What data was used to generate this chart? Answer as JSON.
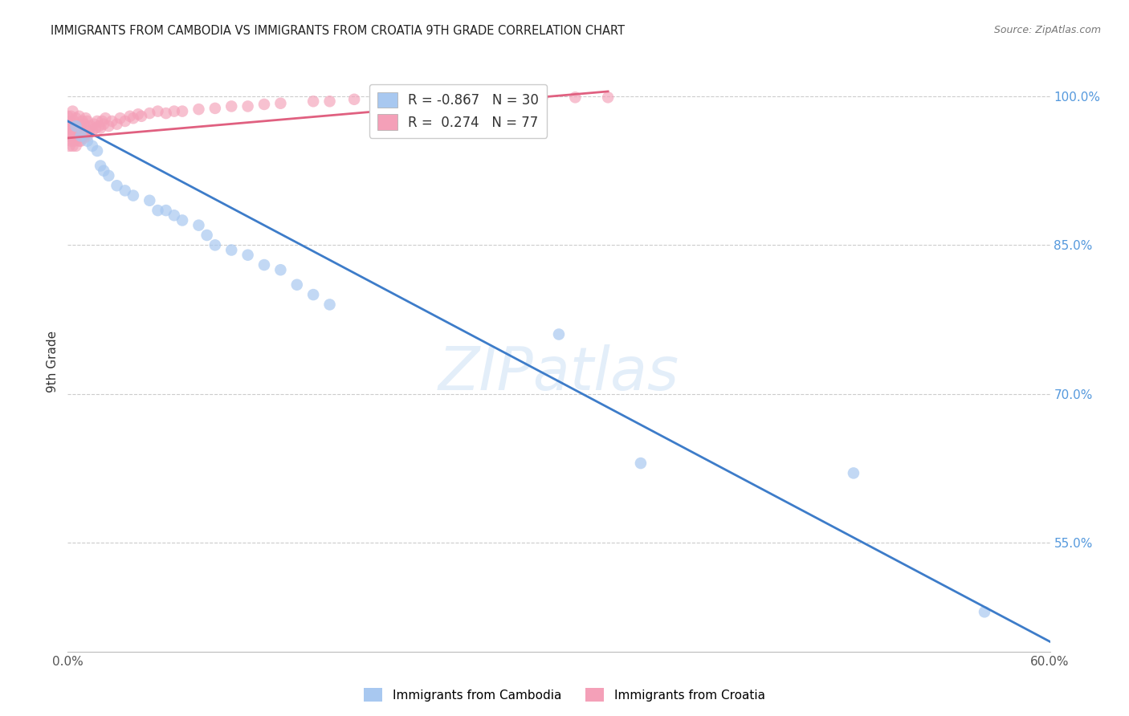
{
  "title": "IMMIGRANTS FROM CAMBODIA VS IMMIGRANTS FROM CROATIA 9TH GRADE CORRELATION CHART",
  "source": "Source: ZipAtlas.com",
  "ylabel": "9th Grade",
  "legend_label1": "Immigrants from Cambodia",
  "legend_label2": "Immigrants from Croatia",
  "R1": -0.867,
  "N1": 30,
  "R2": 0.274,
  "N2": 77,
  "blue_color": "#a8c8f0",
  "pink_color": "#f4a0b8",
  "blue_line_color": "#3d7cc9",
  "pink_line_color": "#e06080",
  "watermark": "ZIPatlas",
  "xlim": [
    0.0,
    0.6
  ],
  "ylim": [
    0.44,
    1.025
  ],
  "right_yticks": [
    1.0,
    0.85,
    0.7,
    0.55
  ],
  "right_ytick_labels": [
    "100.0%",
    "85.0%",
    "70.0%",
    "55.0%"
  ],
  "blue_x": [
    0.005,
    0.008,
    0.012,
    0.015,
    0.018,
    0.02,
    0.022,
    0.025,
    0.03,
    0.035,
    0.04,
    0.05,
    0.055,
    0.06,
    0.065,
    0.07,
    0.08,
    0.085,
    0.09,
    0.1,
    0.11,
    0.12,
    0.13,
    0.14,
    0.15,
    0.16,
    0.3,
    0.35,
    0.48,
    0.56
  ],
  "blue_y": [
    0.97,
    0.96,
    0.955,
    0.95,
    0.945,
    0.93,
    0.925,
    0.92,
    0.91,
    0.905,
    0.9,
    0.895,
    0.885,
    0.885,
    0.88,
    0.875,
    0.87,
    0.86,
    0.85,
    0.845,
    0.84,
    0.83,
    0.825,
    0.81,
    0.8,
    0.79,
    0.76,
    0.63,
    0.62,
    0.48
  ],
  "pink_x": [
    0.0,
    0.0,
    0.0,
    0.001,
    0.001,
    0.001,
    0.002,
    0.002,
    0.002,
    0.002,
    0.003,
    0.003,
    0.003,
    0.003,
    0.004,
    0.004,
    0.004,
    0.005,
    0.005,
    0.005,
    0.006,
    0.006,
    0.007,
    0.007,
    0.007,
    0.008,
    0.008,
    0.009,
    0.009,
    0.01,
    0.01,
    0.011,
    0.011,
    0.012,
    0.012,
    0.013,
    0.014,
    0.015,
    0.016,
    0.017,
    0.018,
    0.019,
    0.02,
    0.021,
    0.022,
    0.023,
    0.025,
    0.027,
    0.03,
    0.032,
    0.035,
    0.038,
    0.04,
    0.043,
    0.045,
    0.05,
    0.055,
    0.06,
    0.065,
    0.07,
    0.08,
    0.09,
    0.1,
    0.11,
    0.12,
    0.13,
    0.15,
    0.16,
    0.175,
    0.19,
    0.21,
    0.23,
    0.25,
    0.27,
    0.29,
    0.31,
    0.33
  ],
  "pink_y": [
    0.96,
    0.97,
    0.98,
    0.95,
    0.96,
    0.975,
    0.955,
    0.965,
    0.97,
    0.98,
    0.95,
    0.96,
    0.97,
    0.985,
    0.955,
    0.965,
    0.975,
    0.95,
    0.965,
    0.978,
    0.958,
    0.97,
    0.955,
    0.968,
    0.98,
    0.955,
    0.97,
    0.96,
    0.975,
    0.958,
    0.972,
    0.962,
    0.978,
    0.96,
    0.975,
    0.965,
    0.97,
    0.965,
    0.972,
    0.968,
    0.975,
    0.97,
    0.968,
    0.975,
    0.972,
    0.978,
    0.97,
    0.975,
    0.972,
    0.978,
    0.975,
    0.98,
    0.978,
    0.982,
    0.98,
    0.983,
    0.985,
    0.983,
    0.985,
    0.985,
    0.987,
    0.988,
    0.99,
    0.99,
    0.992,
    0.993,
    0.995,
    0.995,
    0.997,
    0.997,
    0.998,
    0.998,
    0.999,
    0.999,
    0.999,
    0.999,
    0.999
  ],
  "blue_trend_x": [
    0.0,
    0.6
  ],
  "blue_trend_y": [
    0.975,
    0.45
  ],
  "pink_trend_x": [
    0.0,
    0.33
  ],
  "pink_trend_y": [
    0.958,
    1.005
  ]
}
